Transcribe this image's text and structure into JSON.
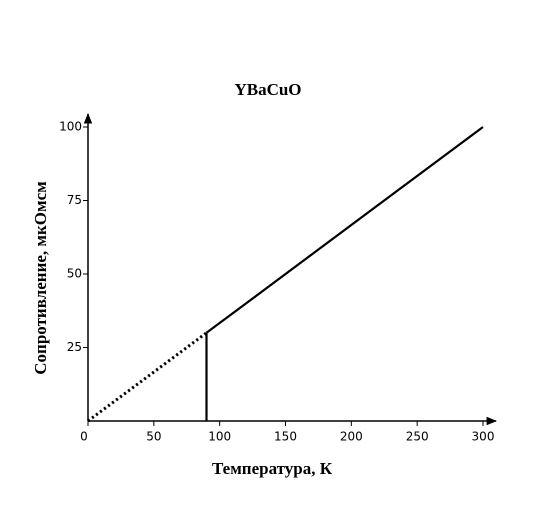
{
  "chart_data": {
    "type": "line",
    "title": "YBaCuO",
    "x_label": "Температура, К",
    "y_label": "Сопротивление, мкОмсм",
    "xlim": [
      0,
      300
    ],
    "ylim": [
      0,
      100
    ],
    "xticks": [
      0,
      50,
      100,
      150,
      200,
      250,
      300
    ],
    "yticks": [
      25,
      50,
      75,
      100
    ],
    "grid": false,
    "series": [
      {
        "color": "#000000",
        "style": "dotted",
        "x": [
          0,
          90
        ],
        "values": [
          0,
          30
        ]
      },
      {
        "color": "#000000",
        "style": "solid",
        "x": [
          90,
          300
        ],
        "values": [
          30,
          100
        ]
      },
      {
        "color": "#000000",
        "style": "solid",
        "x": [
          90,
          90
        ],
        "values": [
          0,
          30
        ]
      }
    ]
  }
}
